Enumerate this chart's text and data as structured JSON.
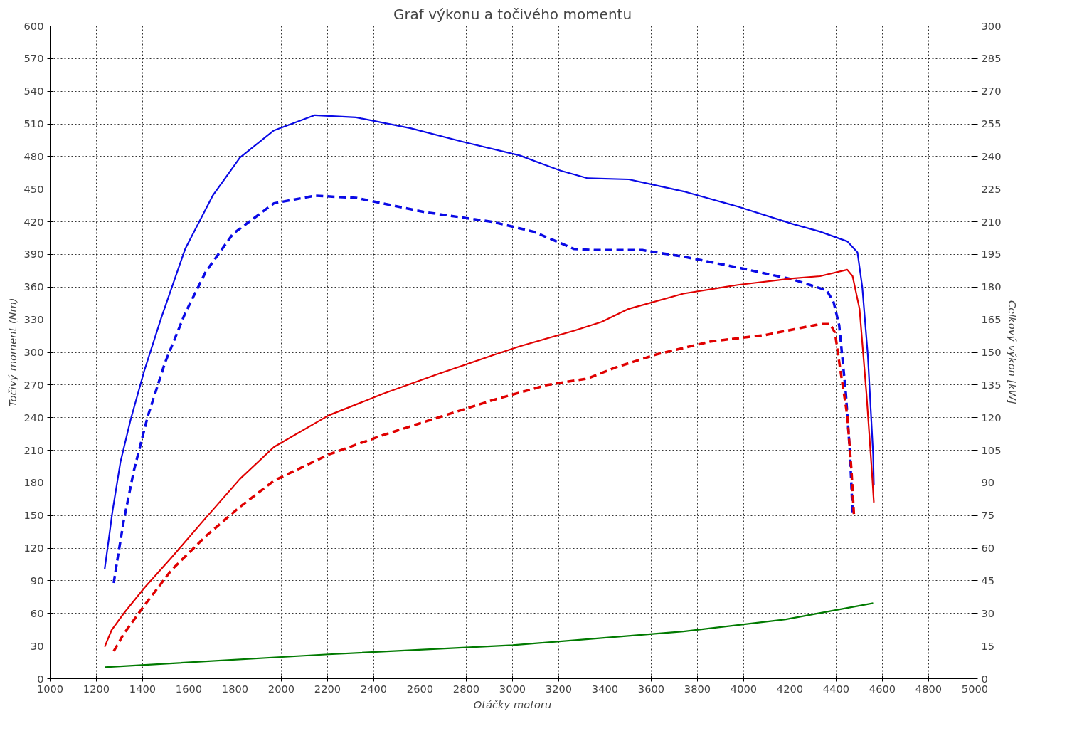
{
  "chart_data": {
    "type": "line",
    "title": "Graf výkonu a točivého momentu",
    "xlabel": "Otáčky motoru",
    "ylabel": "Točivý moment (Nm)",
    "y2label": "Celkový výkon [kW]",
    "xlim": [
      1000,
      5000
    ],
    "xticks": [
      1000,
      1200,
      1400,
      1600,
      1800,
      2000,
      2200,
      2400,
      2600,
      2800,
      3000,
      3200,
      3400,
      3600,
      3800,
      4000,
      4200,
      4400,
      4600,
      4800,
      5000
    ],
    "ylim": [
      0,
      600
    ],
    "yticks": [
      0,
      30,
      60,
      90,
      120,
      150,
      180,
      210,
      240,
      270,
      300,
      330,
      360,
      390,
      420,
      450,
      480,
      510,
      540,
      570,
      600
    ],
    "y2lim": [
      0,
      300
    ],
    "y2ticks": [
      0,
      15,
      30,
      45,
      60,
      75,
      90,
      105,
      120,
      135,
      150,
      165,
      180,
      195,
      210,
      225,
      240,
      255,
      270,
      285,
      300
    ],
    "grid": true,
    "marker": "none",
    "series": [
      {
        "color": "#0a0ae6",
        "line_style": "solid",
        "x": [
          1236,
          1254,
          1269,
          1304,
          1348,
          1407,
          1481,
          1584,
          1703,
          1821,
          1968,
          2145,
          2323,
          2559,
          2795,
          3031,
          3208,
          3326,
          3503,
          3739,
          3975,
          4212,
          4330,
          4448,
          4492,
          4513,
          4537,
          4560,
          4563
        ],
        "values": [
          101,
          129,
          153,
          199,
          238,
          283,
          332,
          395,
          444,
          479,
          504,
          518,
          516,
          506,
          493,
          481,
          467,
          460,
          459,
          448,
          434,
          418,
          411,
          402,
          392,
          360,
          297,
          206,
          178
        ]
      },
      {
        "color": "#0a0ae6",
        "line_style": "dashed",
        "x": [
          1275,
          1295,
          1319,
          1363,
          1422,
          1496,
          1584,
          1673,
          1791,
          1968,
          2145,
          2323,
          2618,
          2913,
          3090,
          3267,
          3356,
          3562,
          3739,
          3975,
          4212,
          4359,
          4389,
          4413,
          4442,
          4460,
          4471
        ],
        "values": [
          88,
          115,
          146,
          192,
          241,
          290,
          336,
          374,
          409,
          437,
          444,
          442,
          429,
          420,
          411,
          395,
          394,
          394,
          388,
          378,
          367,
          357,
          346,
          325,
          262,
          206,
          153
        ]
      },
      {
        "color": "#e00000",
        "line_style": "solid",
        "axis": "y2",
        "x": [
          1236,
          1266,
          1319,
          1407,
          1525,
          1673,
          1821,
          1968,
          2204,
          2441,
          2677,
          2913,
          3031,
          3267,
          3385,
          3503,
          3739,
          3975,
          4212,
          4330,
          4448,
          4471,
          4501,
          4531,
          4554,
          4563
        ],
        "values": [
          14.7,
          22.4,
          30.1,
          41.7,
          55.7,
          73.9,
          91.8,
          106.5,
          121,
          131,
          140,
          148.6,
          152.8,
          160,
          164,
          170,
          177,
          181,
          184,
          185,
          188,
          185,
          170,
          131,
          96,
          81
        ]
      },
      {
        "color": "#e00000",
        "line_style": "dashed",
        "axis": "y2",
        "x": [
          1275,
          1319,
          1407,
          1525,
          1673,
          1821,
          1968,
          2204,
          2441,
          2677,
          2913,
          3149,
          3326,
          3444,
          3621,
          3857,
          4094,
          4330,
          4374,
          4395,
          4418,
          4448,
          4466,
          4477
        ],
        "values": [
          12.6,
          20.7,
          33.6,
          50,
          65.5,
          79,
          91,
          103,
          112,
          120,
          128,
          135,
          138,
          143,
          149,
          155,
          158,
          163,
          163,
          159,
          142,
          121,
          96,
          75
        ]
      },
      {
        "color": "#007a00",
        "line_style": "solid",
        "axis": "y2",
        "x": [
          1236,
          2204,
          3001,
          3739,
          4182,
          4560
        ],
        "values": [
          5.3,
          11.2,
          15.4,
          21.7,
          27.3,
          34.7
        ]
      }
    ]
  }
}
